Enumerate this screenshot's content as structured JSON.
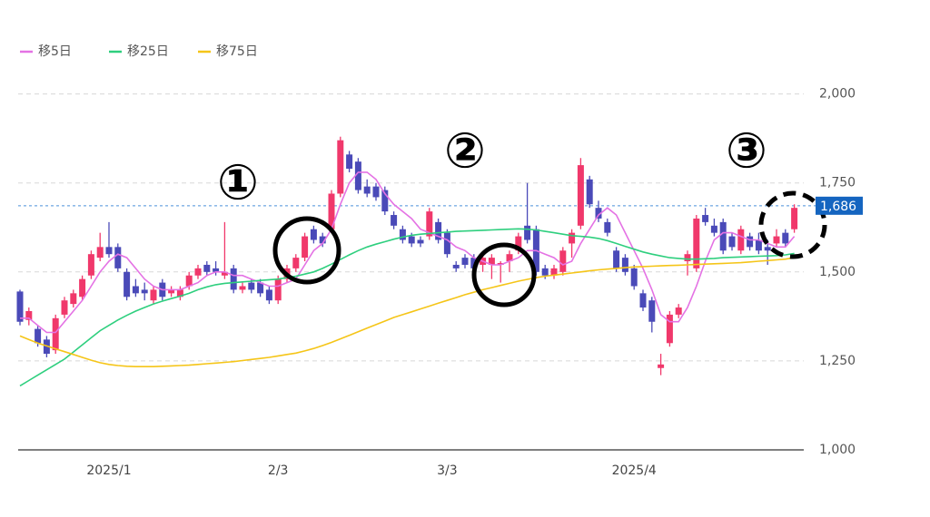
{
  "chart_data": {
    "type": "candlestick",
    "categories": [
      null,
      null,
      null,
      null,
      null,
      null,
      null,
      null,
      null,
      null,
      "2025/1",
      null,
      null,
      null,
      null,
      null,
      null,
      null,
      null,
      null,
      null,
      null,
      null,
      null,
      null,
      null,
      null,
      null,
      null,
      "2/3",
      null,
      null,
      null,
      null,
      null,
      null,
      null,
      null,
      null,
      null,
      null,
      null,
      null,
      null,
      null,
      null,
      null,
      null,
      "3/3",
      null,
      null,
      null,
      null,
      null,
      null,
      null,
      null,
      null,
      null,
      null,
      null,
      null,
      null,
      null,
      null,
      null,
      null,
      null,
      null,
      "2025/4",
      null,
      null,
      null,
      null,
      null,
      null,
      null,
      null,
      null,
      null,
      null,
      null,
      null,
      null,
      null,
      null,
      null,
      null
    ],
    "open": [
      1445,
      1365,
      1340,
      1310,
      1280,
      1380,
      1410,
      1430,
      1490,
      1540,
      1570,
      1570,
      1500,
      1460,
      1450,
      1420,
      1470,
      1440,
      1430,
      1460,
      1490,
      1520,
      1510,
      1490,
      1510,
      1450,
      1470,
      1470,
      1450,
      1420,
      1480,
      1510,
      1540,
      1620,
      1600,
      1620,
      1720,
      1830,
      1810,
      1740,
      1740,
      1730,
      1660,
      1620,
      1600,
      1590,
      1600,
      1640,
      1610,
      1520,
      1540,
      1540,
      1520,
      1520,
      1520,
      1530,
      1560,
      1630,
      1620,
      1510,
      1490,
      1500,
      1580,
      1630,
      1760,
      1680,
      1640,
      1560,
      1540,
      1510,
      1440,
      1420,
      1230,
      1300,
      1380,
      1530,
      1510,
      1660,
      1630,
      1640,
      1600,
      1560,
      1600,
      1590,
      1570,
      1580,
      1610,
      1620
    ],
    "high": [
      1450,
      1400,
      1350,
      1320,
      1380,
      1430,
      1450,
      1490,
      1560,
      1610,
      1640,
      1580,
      1510,
      1480,
      1470,
      1460,
      1480,
      1460,
      1460,
      1500,
      1520,
      1530,
      1530,
      1640,
      1520,
      1470,
      1480,
      1480,
      1460,
      1490,
      1520,
      1550,
      1610,
      1630,
      1610,
      1730,
      1880,
      1840,
      1820,
      1760,
      1750,
      1740,
      1670,
      1630,
      1610,
      1600,
      1680,
      1650,
      1620,
      1530,
      1550,
      1550,
      1550,
      1550,
      1530,
      1560,
      1610,
      1750,
      1630,
      1520,
      1520,
      1570,
      1620,
      1820,
      1770,
      1700,
      1650,
      1570,
      1550,
      1520,
      1450,
      1430,
      1270,
      1390,
      1410,
      1560,
      1660,
      1680,
      1650,
      1650,
      1610,
      1630,
      1610,
      1610,
      1590,
      1620,
      1620,
      1690
    ],
    "low": [
      1350,
      1350,
      1290,
      1260,
      1270,
      1370,
      1400,
      1420,
      1480,
      1530,
      1540,
      1500,
      1420,
      1430,
      1420,
      1410,
      1420,
      1430,
      1420,
      1450,
      1480,
      1490,
      1490,
      1480,
      1440,
      1440,
      1440,
      1430,
      1410,
      1410,
      1470,
      1500,
      1530,
      1580,
      1570,
      1610,
      1710,
      1780,
      1720,
      1710,
      1700,
      1660,
      1620,
      1580,
      1570,
      1570,
      1590,
      1580,
      1540,
      1500,
      1510,
      1490,
      1500,
      1480,
      1470,
      1500,
      1550,
      1580,
      1490,
      1480,
      1480,
      1490,
      1540,
      1620,
      1680,
      1640,
      1600,
      1500,
      1490,
      1450,
      1390,
      1330,
      1210,
      1290,
      1370,
      1490,
      1500,
      1630,
      1600,
      1550,
      1560,
      1550,
      1560,
      1550,
      1520,
      1570,
      1570,
      1610
    ],
    "close": [
      1360,
      1390,
      1300,
      1270,
      1370,
      1420,
      1440,
      1480,
      1550,
      1570,
      1550,
      1510,
      1430,
      1440,
      1440,
      1450,
      1430,
      1450,
      1450,
      1490,
      1510,
      1500,
      1500,
      1500,
      1450,
      1460,
      1450,
      1440,
      1420,
      1480,
      1510,
      1540,
      1600,
      1590,
      1580,
      1720,
      1870,
      1790,
      1730,
      1720,
      1710,
      1670,
      1630,
      1590,
      1580,
      1580,
      1670,
      1590,
      1550,
      1510,
      1520,
      1510,
      1540,
      1540,
      1525,
      1550,
      1600,
      1590,
      1500,
      1490,
      1510,
      1560,
      1610,
      1800,
      1690,
      1650,
      1610,
      1510,
      1500,
      1460,
      1400,
      1360,
      1240,
      1380,
      1400,
      1550,
      1650,
      1640,
      1610,
      1560,
      1570,
      1620,
      1570,
      1560,
      1560,
      1600,
      1580,
      1680
    ],
    "up_color": "#f0386b",
    "down_color": "#4a4ab8",
    "series": [
      {
        "name": "移5日",
        "color": "#e472e4",
        "values": [
          1370,
          1370,
          1350,
          1330,
          1330,
          1360,
          1390,
          1420,
          1460,
          1500,
          1530,
          1550,
          1540,
          1510,
          1480,
          1460,
          1450,
          1450,
          1450,
          1460,
          1470,
          1490,
          1500,
          1500,
          1490,
          1490,
          1480,
          1470,
          1460,
          1460,
          1470,
          1480,
          1520,
          1560,
          1580,
          1620,
          1690,
          1750,
          1780,
          1780,
          1760,
          1720,
          1690,
          1670,
          1650,
          1620,
          1610,
          1600,
          1590,
          1570,
          1560,
          1540,
          1530,
          1520,
          1520,
          1530,
          1540,
          1560,
          1560,
          1550,
          1540,
          1520,
          1530,
          1580,
          1620,
          1660,
          1680,
          1660,
          1610,
          1560,
          1510,
          1450,
          1380,
          1360,
          1360,
          1400,
          1460,
          1530,
          1590,
          1610,
          1610,
          1600,
          1590,
          1590,
          1580,
          1570,
          1570,
          1600
        ]
      },
      {
        "name": "移25日",
        "color": "#2ecf7e",
        "values": [
          1180,
          1195,
          1210,
          1225,
          1240,
          1255,
          1275,
          1295,
          1315,
          1335,
          1350,
          1365,
          1378,
          1390,
          1400,
          1410,
          1418,
          1425,
          1432,
          1440,
          1450,
          1458,
          1464,
          1468,
          1470,
          1472,
          1474,
          1476,
          1478,
          1480,
          1484,
          1488,
          1494,
          1500,
          1510,
          1522,
          1535,
          1548,
          1560,
          1570,
          1578,
          1585,
          1592,
          1598,
          1603,
          1606,
          1608,
          1610,
          1612,
          1614,
          1615,
          1616,
          1617,
          1618,
          1619,
          1620,
          1621,
          1620,
          1618,
          1614,
          1610,
          1606,
          1602,
          1600,
          1598,
          1594,
          1588,
          1580,
          1572,
          1564,
          1556,
          1550,
          1545,
          1540,
          1538,
          1536,
          1536,
          1537,
          1538,
          1540,
          1541,
          1542,
          1543,
          1544,
          1545,
          1546,
          1548,
          1552
        ]
      },
      {
        "name": "移75日",
        "color": "#f5c518",
        "values": [
          1320,
          1310,
          1300,
          1292,
          1284,
          1276,
          1268,
          1260,
          1252,
          1245,
          1240,
          1237,
          1235,
          1234,
          1234,
          1234,
          1235,
          1236,
          1237,
          1238,
          1240,
          1242,
          1244,
          1246,
          1248,
          1251,
          1254,
          1257,
          1260,
          1264,
          1268,
          1272,
          1278,
          1285,
          1293,
          1302,
          1312,
          1322,
          1332,
          1342,
          1352,
          1362,
          1372,
          1380,
          1388,
          1396,
          1404,
          1412,
          1420,
          1428,
          1436,
          1443,
          1450,
          1456,
          1462,
          1468,
          1474,
          1479,
          1484,
          1488,
          1491,
          1494,
          1497,
          1500,
          1503,
          1506,
          1508,
          1510,
          1512,
          1514,
          1515,
          1516,
          1517,
          1518,
          1519,
          1520,
          1521,
          1522,
          1523,
          1524,
          1525,
          1526,
          1528,
          1530,
          1532,
          1534,
          1536,
          1540
        ]
      }
    ],
    "ylim": [
      1000,
      2050
    ],
    "yticks": [
      {
        "value": 1000,
        "label": "1,000"
      },
      {
        "value": 1250,
        "label": "1,250"
      },
      {
        "value": 1500,
        "label": "1,500"
      },
      {
        "value": 1750,
        "label": "1,750"
      },
      {
        "value": 2000,
        "label": "2,000"
      }
    ],
    "grid": true,
    "last_price": {
      "value": 1686,
      "label": "1,686"
    },
    "annotations": [
      "①",
      "②",
      "③"
    ]
  }
}
